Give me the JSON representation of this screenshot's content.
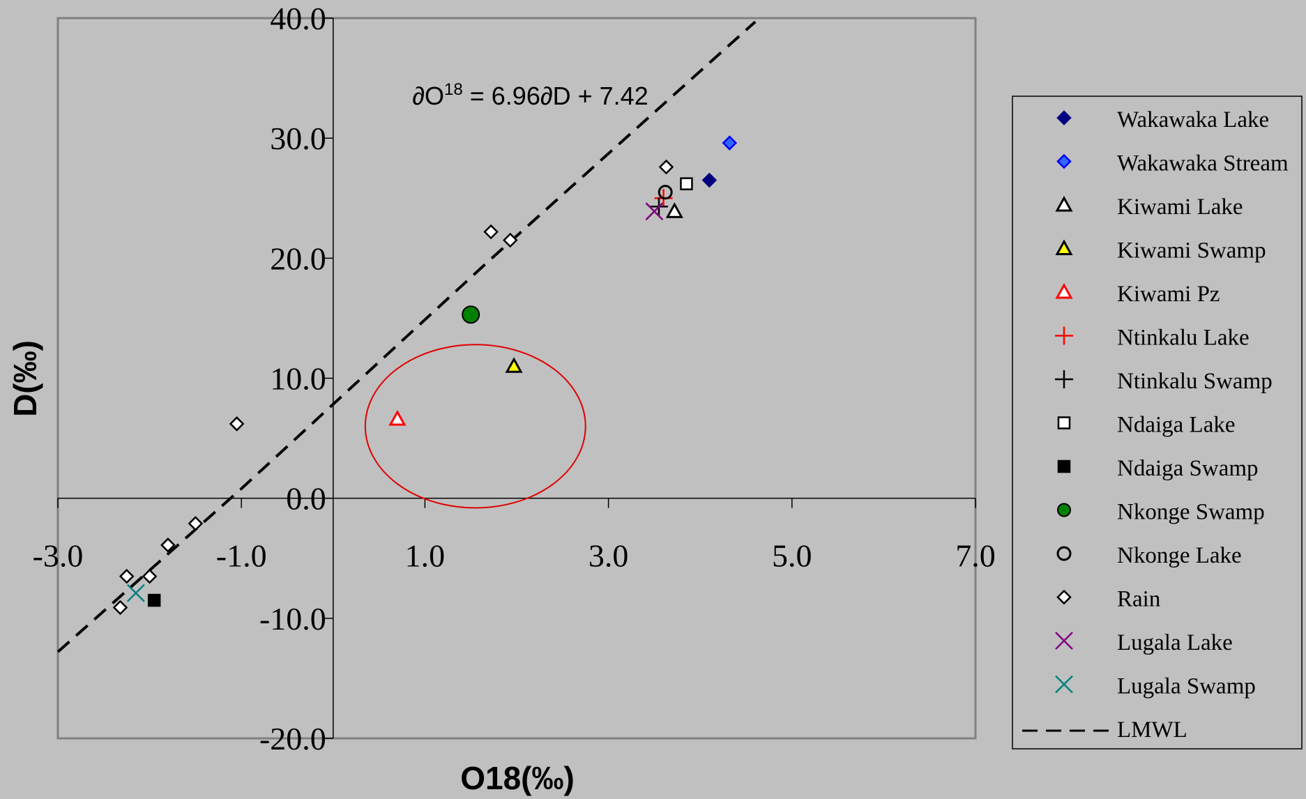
{
  "chart_data": {
    "type": "scatter",
    "title": "",
    "xlabel": "O18(‰)",
    "ylabel": "D(‰)",
    "xlim": [
      -3.0,
      7.0
    ],
    "ylim": [
      -20.0,
      40.0
    ],
    "x_ticks": [
      -3.0,
      -1.0,
      1.0,
      3.0,
      5.0,
      7.0
    ],
    "x_tick_labels": [
      "-3.0",
      "-1.0",
      "1.0",
      "3.0",
      "5.0",
      "7.0"
    ],
    "y_ticks": [
      -20.0,
      -10.0,
      0.0,
      10.0,
      20.0,
      30.0,
      40.0
    ],
    "y_tick_labels": [
      "-20.0",
      "-10.0",
      "0.0",
      "10.0",
      "20.0",
      "30.0",
      "40.0"
    ],
    "grid": false,
    "legend_position": "right",
    "annotation": {
      "text_main": "∂O",
      "text_sup": "18",
      "text_rest": " = 6.96∂D + 7.42",
      "x": 3.25,
      "y": 32.8
    },
    "highlight_ellipse": {
      "cx": 1.55,
      "cy": 6.0,
      "rx": 1.2,
      "ry": 6.8,
      "color": "#e00000"
    },
    "series": [
      {
        "name": "Wakawaka Lake",
        "marker": "diamond",
        "fill": "#000080",
        "stroke": "#000080",
        "points": [
          [
            4.1,
            26.5
          ]
        ]
      },
      {
        "name": "Wakawaka Stream",
        "marker": "diamond",
        "fill": "#3366ff",
        "stroke": "#0000ff",
        "points": [
          [
            4.32,
            29.6
          ]
        ]
      },
      {
        "name": "Kiwami Lake",
        "marker": "triangle",
        "fill": "#ffffff",
        "stroke": "#000000",
        "points": [
          [
            3.72,
            23.9
          ]
        ]
      },
      {
        "name": "Kiwami Swamp",
        "marker": "triangle",
        "fill": "#ffff00",
        "stroke": "#000000",
        "points": [
          [
            1.97,
            11.0
          ]
        ]
      },
      {
        "name": "Kiwami Pz",
        "marker": "triangle",
        "fill": "#ffffff",
        "stroke": "#ff0000",
        "points": [
          [
            0.7,
            6.6
          ]
        ]
      },
      {
        "name": "Ntinkalu Lake",
        "marker": "plus",
        "fill": "none",
        "stroke": "#ff0000",
        "points": [
          [
            3.6,
            25.0
          ]
        ]
      },
      {
        "name": "Ntinkalu Swamp",
        "marker": "plus",
        "fill": "none",
        "stroke": "#000000",
        "points": [
          [
            3.55,
            24.3
          ]
        ]
      },
      {
        "name": "Ndaiga Lake",
        "marker": "square",
        "fill": "#ffffff",
        "stroke": "#000000",
        "points": [
          [
            3.85,
            26.2
          ]
        ]
      },
      {
        "name": "Ndaiga Swamp",
        "marker": "square",
        "fill": "#000000",
        "stroke": "#000000",
        "points": [
          [
            -1.95,
            -8.5
          ]
        ]
      },
      {
        "name": "Nkonge Swamp",
        "marker": "circle-lg",
        "fill": "#008000",
        "stroke": "#000000",
        "points": [
          [
            1.5,
            15.3
          ]
        ]
      },
      {
        "name": " Nkonge Lake",
        "marker": "circle",
        "fill": "none",
        "stroke": "#000000",
        "points": [
          [
            3.62,
            25.5
          ]
        ]
      },
      {
        "name": "Rain",
        "marker": "diamond",
        "fill": "#ffffff",
        "stroke": "#000000",
        "points": [
          [
            -1.05,
            6.2
          ],
          [
            -1.5,
            -2.1
          ],
          [
            -1.8,
            -3.9
          ],
          [
            -2.0,
            -6.5
          ],
          [
            -2.25,
            -6.5
          ],
          [
            -2.32,
            -9.1
          ],
          [
            1.72,
            22.2
          ],
          [
            1.93,
            21.5
          ],
          [
            3.63,
            27.6
          ]
        ]
      },
      {
        "name": "Lugala Lake",
        "marker": "x",
        "fill": "none",
        "stroke": "#800080",
        "points": [
          [
            3.5,
            23.9
          ]
        ]
      },
      {
        "name": "Lugala Swamp",
        "marker": "x",
        "fill": "none",
        "stroke": "#008080",
        "points": [
          [
            -2.15,
            -7.9
          ]
        ]
      }
    ],
    "lmwl": {
      "name": "LMWL",
      "points": [
        [
          -3.0,
          -12.8
        ],
        [
          -1.0,
          0.8
        ],
        [
          1.7,
          19.8
        ],
        [
          4.6,
          39.7
        ]
      ],
      "stroke": "#000000"
    }
  }
}
